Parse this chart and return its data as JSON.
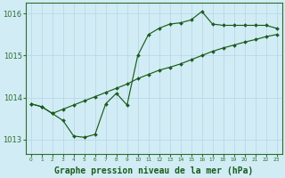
{
  "title": "Graphe pression niveau de la mer (hPa)",
  "bg_color": "#d1ecf5",
  "grid_color": "#b8d8e8",
  "line_color": "#1a5c1a",
  "marker_color": "#1a5c1a",
  "xlim": [
    -0.5,
    23.5
  ],
  "ylim": [
    1012.65,
    1016.25
  ],
  "yticks": [
    1013,
    1014,
    1015,
    1016
  ],
  "xticks": [
    0,
    1,
    2,
    3,
    4,
    5,
    6,
    7,
    8,
    9,
    10,
    11,
    12,
    13,
    14,
    15,
    16,
    17,
    18,
    19,
    20,
    21,
    22,
    23
  ],
  "series_jagged": {
    "x": [
      0,
      1,
      2,
      3,
      4,
      5,
      6,
      7,
      8,
      9,
      10,
      11,
      12,
      13,
      14,
      15,
      16,
      17,
      18,
      19,
      20,
      21,
      22,
      23
    ],
    "y": [
      1013.85,
      1013.78,
      1013.62,
      1013.45,
      1013.08,
      1013.05,
      1013.12,
      1013.85,
      1014.1,
      1013.82,
      1015.0,
      1015.5,
      1015.65,
      1015.75,
      1015.78,
      1015.85,
      1016.05,
      1015.75,
      1015.72,
      1015.72,
      1015.72,
      1015.72,
      1015.72,
      1015.65
    ]
  },
  "series_straight": {
    "x": [
      0,
      1,
      2,
      3,
      4,
      5,
      6,
      7,
      8,
      9,
      10,
      11,
      12,
      13,
      14,
      15,
      16,
      17,
      18,
      19,
      20,
      21,
      22,
      23
    ],
    "y": [
      1013.85,
      1013.78,
      1013.62,
      1013.72,
      1013.82,
      1013.92,
      1014.02,
      1014.12,
      1014.22,
      1014.32,
      1014.45,
      1014.55,
      1014.65,
      1014.72,
      1014.8,
      1014.9,
      1015.0,
      1015.1,
      1015.18,
      1015.25,
      1015.32,
      1015.38,
      1015.45,
      1015.5
    ]
  },
  "axis_color": "#2d6e2d",
  "tick_color": "#2d6e2d",
  "title_color": "#1a5c1a",
  "title_fontsize": 7.0
}
